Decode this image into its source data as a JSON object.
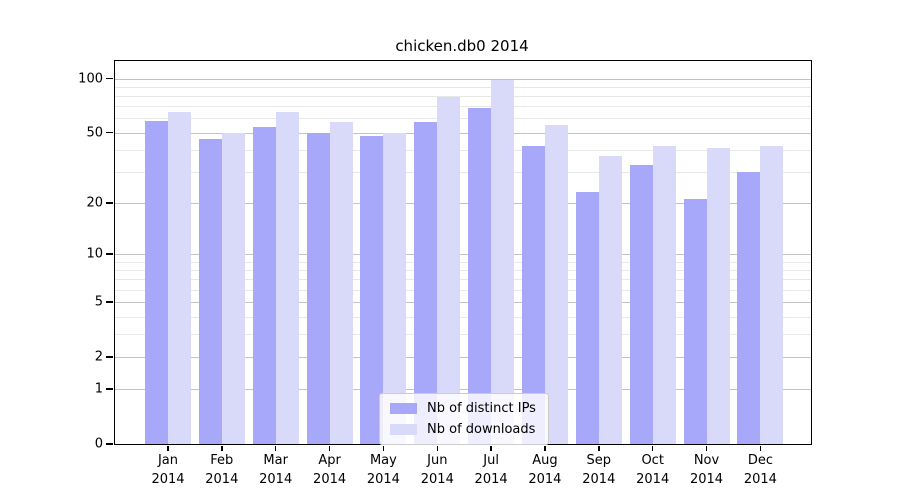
{
  "chart_data": {
    "type": "bar",
    "title": "chicken.db0 2014",
    "year": "2014",
    "months": [
      "Jan",
      "Feb",
      "Mar",
      "Apr",
      "May",
      "Jun",
      "Jul",
      "Aug",
      "Sep",
      "Oct",
      "Nov",
      "Dec"
    ],
    "categories": [
      "Jan 2014",
      "Feb 2014",
      "Mar 2014",
      "Apr 2014",
      "May 2014",
      "Jun 2014",
      "Jul 2014",
      "Aug 2014",
      "Sep 2014",
      "Oct 2014",
      "Nov 2014",
      "Dec 2014"
    ],
    "series": [
      {
        "name": "Nb of distinct IPs",
        "color": "#a8a8fb",
        "values": [
          58,
          46,
          54,
          50,
          48,
          57,
          69,
          42,
          23,
          33,
          21,
          30
        ]
      },
      {
        "name": "Nb of downloads",
        "color": "#d9d9fa",
        "values": [
          65,
          50,
          65,
          57,
          50,
          79,
          98,
          55,
          37,
          42,
          41,
          42
        ]
      }
    ],
    "yscale": "log1p",
    "ylabel": "",
    "xlabel": "",
    "y_ticks": [
      0,
      1,
      2,
      5,
      10,
      20,
      50,
      100
    ],
    "y_minor_ticks": [
      3,
      4,
      6,
      7,
      8,
      9,
      30,
      40,
      60,
      70,
      80,
      90
    ],
    "ylim": [
      0,
      125
    ],
    "grid": "horizontal",
    "legend_position": "lower-center"
  },
  "colors": {
    "major_grid": "#c3c3c3",
    "minor_grid": "#e8e8e8",
    "axis": "#000000",
    "background": "#ffffff"
  }
}
